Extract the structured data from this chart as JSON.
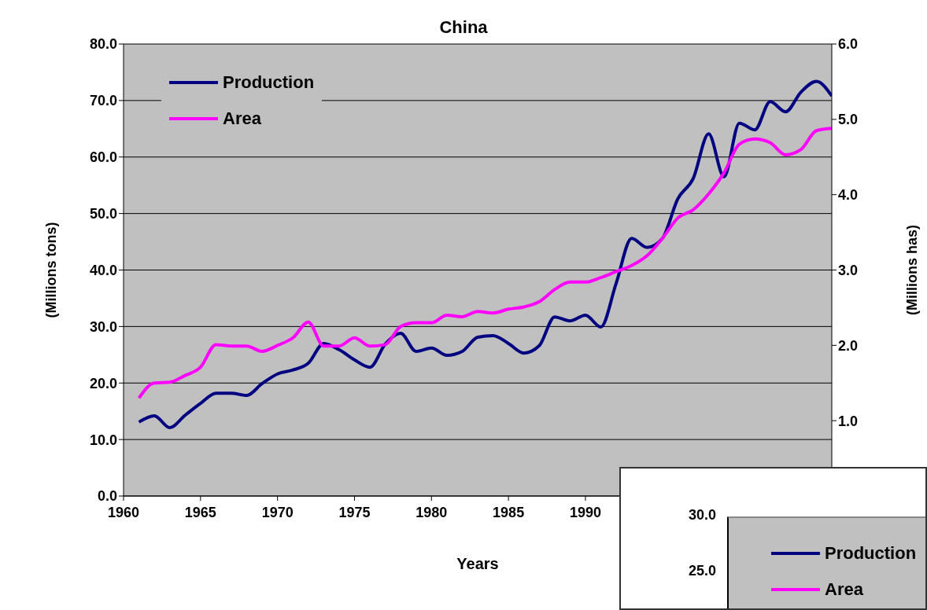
{
  "chart_data": [
    {
      "type": "line",
      "title": "China",
      "xlabel": "Years",
      "ylabel": "(Millions tons)",
      "y2label": "(Millions has)",
      "x": [
        1961,
        1962,
        1963,
        1964,
        1965,
        1966,
        1967,
        1968,
        1969,
        1970,
        1971,
        1972,
        1973,
        1974,
        1975,
        1976,
        1977,
        1978,
        1979,
        1980,
        1981,
        1982,
        1983,
        1984,
        1985,
        1986,
        1987,
        1988,
        1989,
        1990,
        1991,
        1992,
        1993,
        1994,
        1995,
        1996,
        1997,
        1998,
        1999,
        2000,
        2001,
        2002,
        2003,
        2004,
        2005,
        2006
      ],
      "series": [
        {
          "name": "Production",
          "color": "#000080",
          "values": [
            13.1,
            14.2,
            12.1,
            14.3,
            16.4,
            18.2,
            18.2,
            17.8,
            19.9,
            21.6,
            22.3,
            23.5,
            27.0,
            25.9,
            24.1,
            22.8,
            26.9,
            28.8,
            25.6,
            26.2,
            24.9,
            25.6,
            28.1,
            28.4,
            27.0,
            25.3,
            26.6,
            31.7,
            31.0,
            32.0,
            29.9,
            37.7,
            45.6,
            44.0,
            45.6,
            52.6,
            56.2,
            64.1,
            56.5,
            66.0,
            64.8,
            69.8,
            68.0,
            71.5,
            73.4,
            70.8
          ]
        },
        {
          "name": "Area",
          "color": "#ff00ff",
          "axis": "y2",
          "values": [
            1.3,
            1.5,
            1.51,
            1.6,
            1.71,
            2.01,
            1.99,
            1.99,
            1.92,
            2.0,
            2.1,
            2.31,
            1.99,
            1.99,
            2.1,
            1.99,
            2.01,
            2.25,
            2.3,
            2.3,
            2.4,
            2.38,
            2.45,
            2.43,
            2.48,
            2.51,
            2.58,
            2.74,
            2.84,
            2.84,
            2.9,
            2.98,
            3.06,
            3.19,
            3.42,
            3.69,
            3.8,
            4.01,
            4.29,
            4.67,
            4.74,
            4.69,
            4.53,
            4.6,
            4.85,
            4.88
          ]
        }
      ],
      "xlim": [
        1960,
        2006
      ],
      "xticks": [
        1960,
        1965,
        1970,
        1975,
        1980,
        1985,
        1990
      ],
      "ylim": [
        0,
        80
      ],
      "yticks": [
        {
          "value": 0,
          "label": "0.0"
        },
        {
          "value": 10,
          "label": "10.0"
        },
        {
          "value": 20,
          "label": "20.0"
        },
        {
          "value": 30,
          "label": "30.0"
        },
        {
          "value": 40,
          "label": "40.0"
        },
        {
          "value": 50,
          "label": "50.0"
        },
        {
          "value": 60,
          "label": "60.0"
        },
        {
          "value": 70,
          "label": "70.0"
        },
        {
          "value": 80,
          "label": "80.0"
        }
      ],
      "y2lim": [
        0,
        6
      ],
      "y2ticks": [
        {
          "value": 1,
          "label": "1.0"
        },
        {
          "value": 2,
          "label": "2.0"
        },
        {
          "value": 3,
          "label": "3.0"
        },
        {
          "value": 4,
          "label": "4.0"
        },
        {
          "value": 5,
          "label": "5.0"
        },
        {
          "value": 6,
          "label": "6.0"
        }
      ],
      "grid": "y",
      "legend": "top left",
      "marker": "none",
      "line_style": "solid"
    },
    {
      "type": "other",
      "series": [
        {
          "name": "Production",
          "color": "#000080"
        },
        {
          "name": "Area",
          "color": "#ff00ff"
        }
      ],
      "annotations": [
        "30.0",
        "25.0"
      ],
      "legend": "top left"
    }
  ]
}
